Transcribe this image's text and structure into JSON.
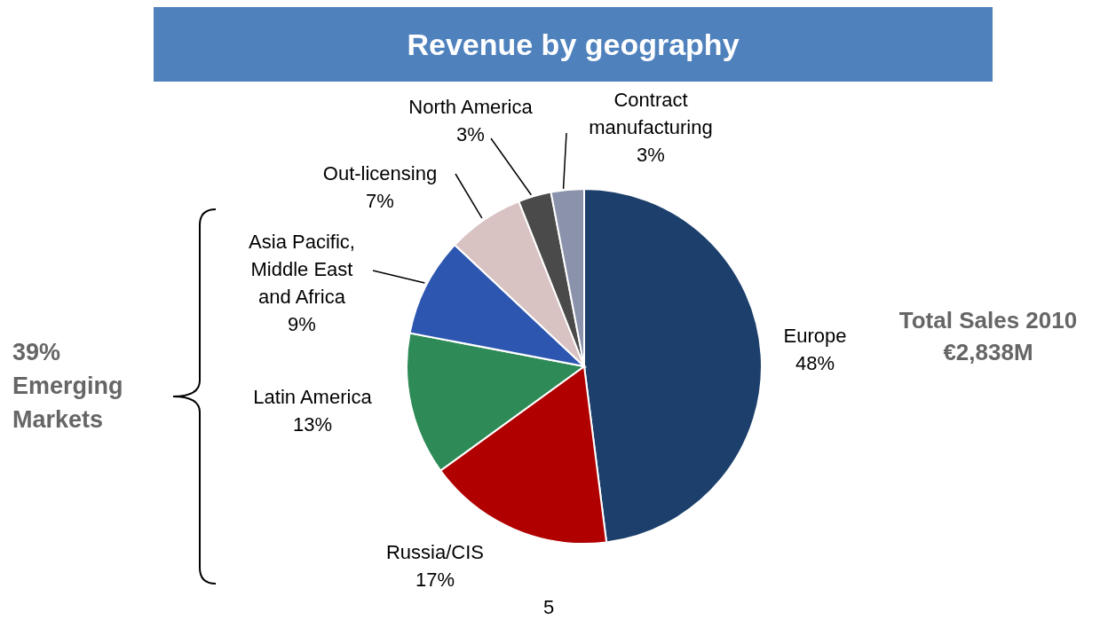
{
  "chart_data": {
    "type": "pie",
    "title": "Revenue by geography",
    "categories": [
      "Europe",
      "Russia/CIS",
      "Latin America",
      "Asia Pacific, Middle East and Africa",
      "Out-licensing",
      "North America",
      "Contract manufacturing"
    ],
    "values": [
      48,
      17,
      13,
      9,
      7,
      3,
      3
    ],
    "value_labels": [
      "48%",
      "17%",
      "13%",
      "9%",
      "7%",
      "3%",
      "3%"
    ],
    "colors": [
      "#1d3f6b",
      "#b00000",
      "#2e8a57",
      "#2d56b0",
      "#d8c2c2",
      "#4a4a4a",
      "#8a93ab"
    ],
    "annotations": [
      "Total Sales 2010 €2,838M",
      "39% Emerging Markets",
      "5"
    ]
  }
}
